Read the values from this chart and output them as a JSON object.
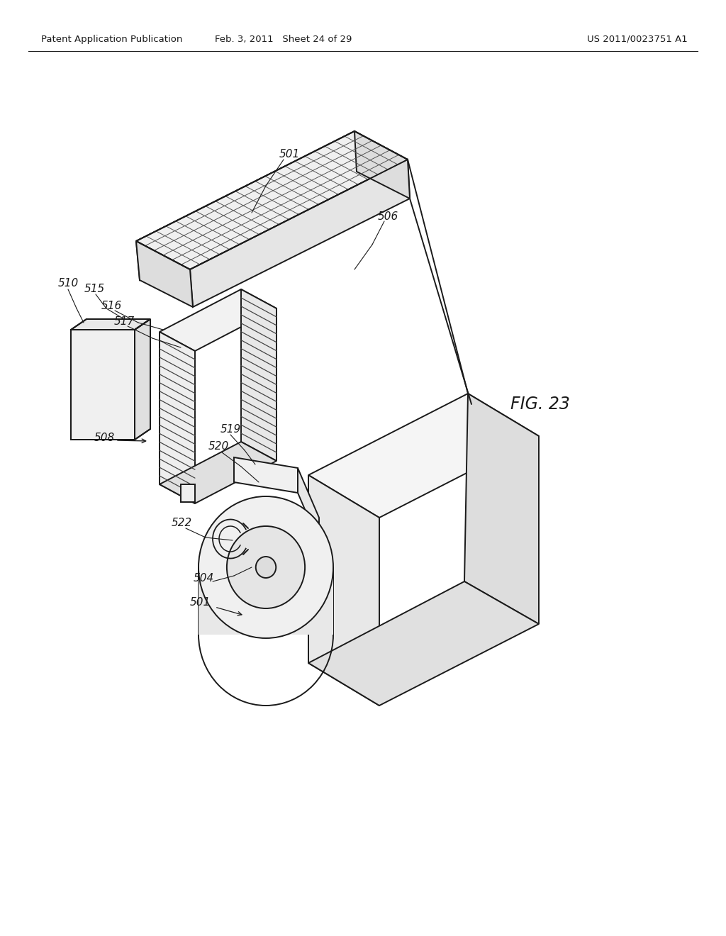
{
  "background_color": "#ffffff",
  "header_left": "Patent Application Publication",
  "header_center": "Feb. 3, 2011   Sheet 24 of 29",
  "header_right": "US 2011/0023751 A1",
  "figure_label": "FIG. 23",
  "line_color": "#1a1a1a"
}
